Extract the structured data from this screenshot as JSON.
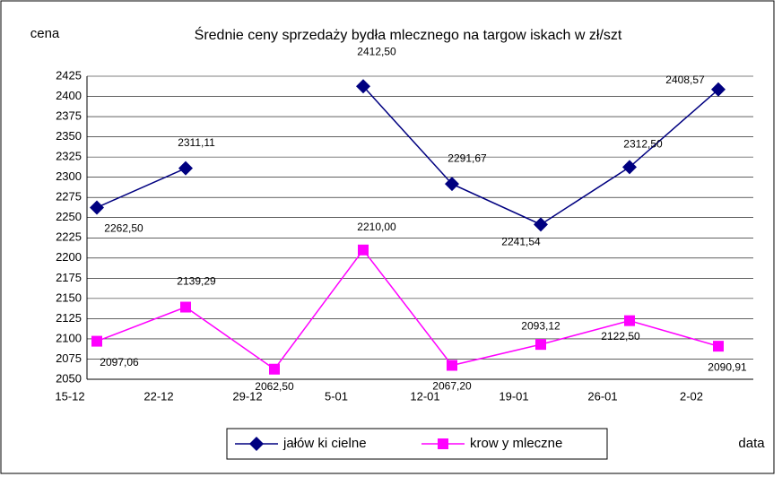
{
  "chart_data": {
    "type": "line",
    "title": "Średnie ceny sprzedaży bydła mlecznego na targow iskach w zł/szt",
    "y_label": "cena",
    "x_label": "data",
    "categories": [
      "15-12",
      "22-12",
      "29-12",
      "5-01",
      "12-01",
      "19-01",
      "26-01",
      "2-02"
    ],
    "series": [
      {
        "name": "jałów ki cielne",
        "color": "#000080",
        "values": [
          2262.5,
          2311.11,
          null,
          2412.5,
          2291.67,
          2241.54,
          2312.5,
          2408.57
        ],
        "value_labels": [
          "2262,50",
          "2311,11",
          null,
          "2412,50",
          "2291,67",
          "2241,54",
          "2312,50",
          "2408,57"
        ]
      },
      {
        "name": "krow y mleczne",
        "color": "#ff00ff",
        "values": [
          2097.06,
          2139.29,
          2062.5,
          2210.0,
          2067.2,
          2093.12,
          2122.5,
          2090.91
        ],
        "value_labels": [
          "2097,06",
          "2139,29",
          "2062,50",
          "2210,00",
          "2067,20",
          "2093,12",
          "2122,50",
          "2090,91"
        ]
      }
    ],
    "ylim": [
      2050,
      2425
    ],
    "yticks": [
      2050,
      2075,
      2100,
      2125,
      2150,
      2175,
      2200,
      2225,
      2250,
      2275,
      2300,
      2325,
      2350,
      2375,
      2400,
      2425
    ],
    "grid": true,
    "legend": "bottom"
  }
}
